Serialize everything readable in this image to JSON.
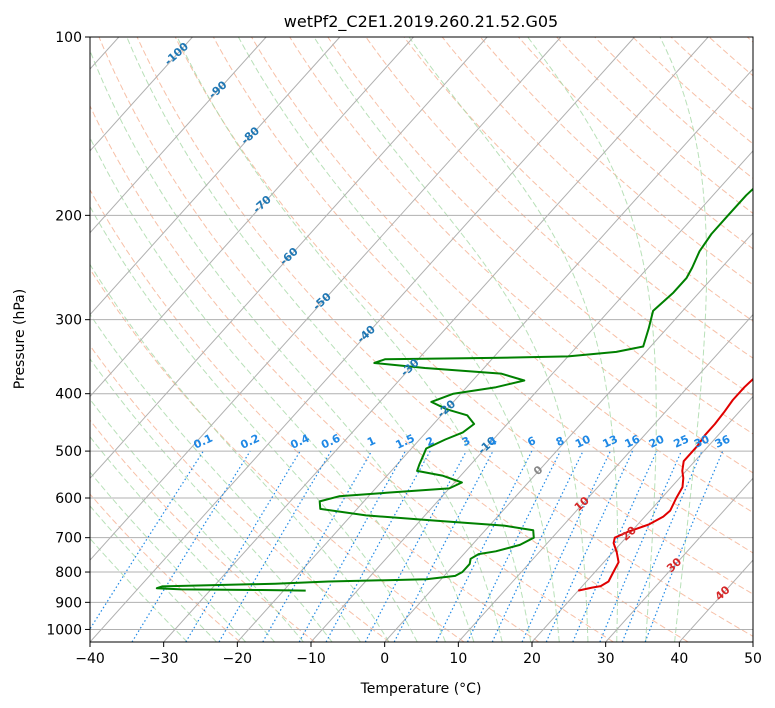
{
  "chart_data": {
    "type": "line",
    "title": "wetPf2_C2E1.2019.260.21.52.G05",
    "xlabel": "Temperature (°C)",
    "ylabel": "Pressure (hPa)",
    "xlim": [
      -40,
      50
    ],
    "ylim": [
      1050,
      100
    ],
    "y_scale": "log",
    "grid": true,
    "x_ticks": [
      -40,
      -30,
      -20,
      -10,
      0,
      10,
      20,
      30,
      40,
      50
    ],
    "y_ticks": [
      100,
      200,
      300,
      400,
      500,
      600,
      700,
      800,
      900,
      1000
    ],
    "colors": {
      "temperature": "#e00000",
      "dewpoint": "#008000",
      "isotherm": "#b0b0b0",
      "dry_adiabat": "#f4a582",
      "moist_adiabat": "#a6d8a6",
      "mixing_ratio": "#1e88e5",
      "isotherm_label": "#1f77b4",
      "warm_label": "#d62728",
      "zero_label": "#888888"
    },
    "series": [
      {
        "key": "temperature",
        "points": [
          [
            20,
            860
          ],
          [
            21.5,
            850
          ],
          [
            22.5,
            845
          ],
          [
            23,
            830
          ],
          [
            22.5,
            800
          ],
          [
            22,
            770
          ],
          [
            20.5,
            740
          ],
          [
            19,
            715
          ],
          [
            18.5,
            700
          ],
          [
            19.5,
            685
          ],
          [
            21.5,
            665
          ],
          [
            22.5,
            645
          ],
          [
            22.7,
            630
          ],
          [
            22,
            600
          ],
          [
            21.5,
            575
          ],
          [
            20.5,
            555
          ],
          [
            19.5,
            540
          ],
          [
            18.5,
            520
          ],
          [
            18.5,
            490
          ],
          [
            18.2,
            470
          ],
          [
            18.2,
            450
          ],
          [
            18,
            430
          ],
          [
            17.7,
            410
          ],
          [
            17.7,
            390
          ],
          [
            18,
            370
          ],
          [
            17.5,
            350
          ],
          [
            15.5,
            330
          ],
          [
            13,
            310
          ],
          [
            10.5,
            290
          ],
          [
            8,
            270
          ],
          [
            6,
            250
          ],
          [
            5,
            230
          ],
          [
            4.5,
            210
          ],
          [
            4,
            190
          ],
          [
            3,
            170
          ],
          [
            2.2,
            150
          ],
          [
            1.8,
            140
          ],
          [
            0.5,
            130
          ],
          [
            -1,
            122
          ],
          [
            -1.5,
            118
          ],
          [
            -1,
            113
          ],
          [
            1,
            108
          ],
          [
            3,
            103
          ],
          [
            4,
            100
          ]
        ]
      },
      {
        "key": "dewpoint",
        "points": [
          [
            -17,
            860
          ],
          [
            -23,
            858
          ],
          [
            -34,
            856
          ],
          [
            -37.5,
            852
          ],
          [
            -37,
            846
          ],
          [
            -22,
            837
          ],
          [
            -15,
            830
          ],
          [
            -2,
            823
          ],
          [
            1.5,
            812
          ],
          [
            2,
            800
          ],
          [
            2,
            775
          ],
          [
            1.5,
            760
          ],
          [
            2,
            746
          ],
          [
            4,
            738
          ],
          [
            6.5,
            720
          ],
          [
            7.5,
            700
          ],
          [
            6.5,
            680
          ],
          [
            2,
            668
          ],
          [
            -8,
            655
          ],
          [
            -18,
            642
          ],
          [
            -25,
            626
          ],
          [
            -26,
            608
          ],
          [
            -24,
            596
          ],
          [
            -18,
            588
          ],
          [
            -10,
            578
          ],
          [
            -9,
            565
          ],
          [
            -12.5,
            550
          ],
          [
            -16.5,
            540
          ],
          [
            -17,
            526
          ],
          [
            -17.5,
            510
          ],
          [
            -18,
            495
          ],
          [
            -16.5,
            478
          ],
          [
            -15,
            465
          ],
          [
            -14.5,
            450
          ],
          [
            -16.5,
            435
          ],
          [
            -20,
            425
          ],
          [
            -23,
            413
          ],
          [
            -21,
            400
          ],
          [
            -16,
            390
          ],
          [
            -13,
            380
          ],
          [
            -17,
            370
          ],
          [
            -28,
            362
          ],
          [
            -35.5,
            355
          ],
          [
            -34.5,
            350
          ],
          [
            -20,
            348
          ],
          [
            -10,
            346
          ],
          [
            -4,
            340
          ],
          [
            -1,
            333
          ],
          [
            -2.5,
            310
          ],
          [
            -4,
            290
          ],
          [
            -3.5,
            270
          ],
          [
            -3.5,
            255
          ],
          [
            -4,
            245
          ],
          [
            -5,
            230
          ],
          [
            -5.5,
            215
          ],
          [
            -5.5,
            200
          ],
          [
            -5.5,
            185
          ],
          [
            -5,
            170
          ],
          [
            -4.5,
            158
          ],
          [
            -5,
            148
          ],
          [
            -4,
            135
          ],
          [
            -3,
            125
          ],
          [
            -1,
            115
          ],
          [
            1,
            106
          ],
          [
            2.5,
            100
          ]
        ]
      }
    ],
    "isotherm_labels": [
      -100,
      -90,
      -80,
      -70,
      -60,
      -50,
      -40,
      -30,
      -20,
      -10,
      0,
      10,
      20,
      30,
      40
    ],
    "mixing_ratio_labels": [
      "0.1",
      "0.2",
      "0.4",
      "0.6",
      "1",
      "1.5",
      "2",
      "3",
      "4",
      "6",
      "8",
      "10",
      "13",
      "16",
      "20",
      "25",
      "30",
      "36"
    ],
    "mixing_ratio_values": [
      0.1,
      0.2,
      0.4,
      0.6,
      1,
      1.5,
      2,
      3,
      4,
      6,
      8,
      10,
      13,
      16,
      20,
      25,
      30,
      36
    ]
  }
}
